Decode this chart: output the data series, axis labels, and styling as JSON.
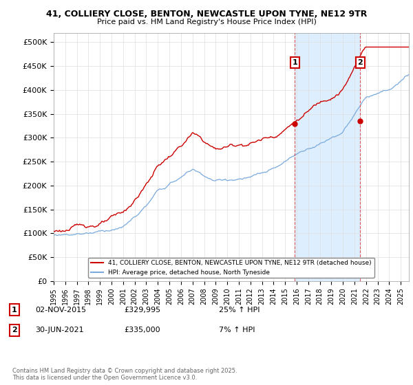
{
  "title1": "41, COLLIERY CLOSE, BENTON, NEWCASTLE UPON TYNE, NE12 9TR",
  "title2": "Price paid vs. HM Land Registry's House Price Index (HPI)",
  "ylim": [
    0,
    520000
  ],
  "yticks": [
    0,
    50000,
    100000,
    150000,
    200000,
    250000,
    300000,
    350000,
    400000,
    450000,
    500000
  ],
  "ytick_labels": [
    "£0",
    "£50K",
    "£100K",
    "£150K",
    "£200K",
    "£250K",
    "£300K",
    "£350K",
    "£400K",
    "£450K",
    "£500K"
  ],
  "xlim_start": 1995.0,
  "xlim_end": 2025.7,
  "xticks": [
    1995,
    1996,
    1997,
    1998,
    1999,
    2000,
    2001,
    2002,
    2003,
    2004,
    2005,
    2006,
    2007,
    2008,
    2009,
    2010,
    2011,
    2012,
    2013,
    2014,
    2015,
    2016,
    2017,
    2018,
    2019,
    2020,
    2021,
    2022,
    2023,
    2024,
    2025
  ],
  "red_color": "#cc0000",
  "blue_color": "#7aaadd",
  "shade_color": "#ddeeff",
  "vline_color": "#dd4444",
  "marker1_x": 2015.84,
  "marker1_y": 329995,
  "marker2_x": 2021.5,
  "marker2_y": 335000,
  "legend_red_label": "41, COLLIERY CLOSE, BENTON, NEWCASTLE UPON TYNE, NE12 9TR (detached house)",
  "legend_blue_label": "HPI: Average price, detached house, North Tyneside",
  "annotation1_num": "1",
  "annotation1_date": "02-NOV-2015",
  "annotation1_price": "£329,995",
  "annotation1_hpi": "25% ↑ HPI",
  "annotation2_num": "2",
  "annotation2_date": "30-JUN-2021",
  "annotation2_price": "£335,000",
  "annotation2_hpi": "7% ↑ HPI",
  "footer": "Contains HM Land Registry data © Crown copyright and database right 2025.\nThis data is licensed under the Open Government Licence v3.0.",
  "background_color": "#ffffff",
  "grid_color": "#dddddd"
}
